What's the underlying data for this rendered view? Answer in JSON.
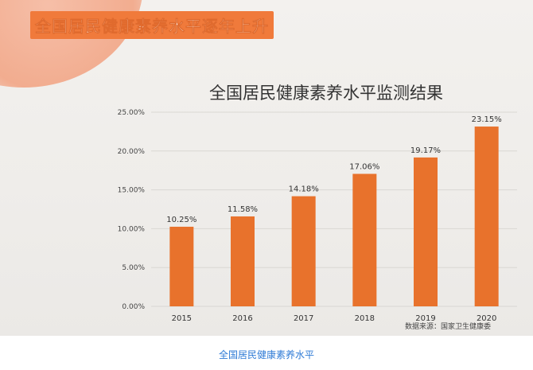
{
  "headline": "全国居民健康素养水平逐年上升",
  "caption": "全国居民健康素养水平",
  "chart_data": {
    "type": "bar",
    "title": "全国居民健康素养水平监测结果",
    "categories": [
      "2015",
      "2016",
      "2017",
      "2018",
      "2019",
      "2020"
    ],
    "values": [
      10.25,
      11.58,
      14.18,
      17.06,
      19.17,
      23.15
    ],
    "value_labels": [
      "10.25%",
      "11.58%",
      "14.18%",
      "17.06%",
      "19.17%",
      "23.15%"
    ],
    "ylim": [
      0,
      25
    ],
    "yticks": [
      0,
      5,
      10,
      15,
      20,
      25
    ],
    "ytick_labels": [
      "0.00%",
      "5.00%",
      "10.00%",
      "15.00%",
      "20.00%",
      "25.00%"
    ],
    "xlabel": "",
    "ylabel": "",
    "grid": "horizontal",
    "source_note": "数据来源：国家卫生健康委",
    "bar_color": "#e8722c"
  }
}
